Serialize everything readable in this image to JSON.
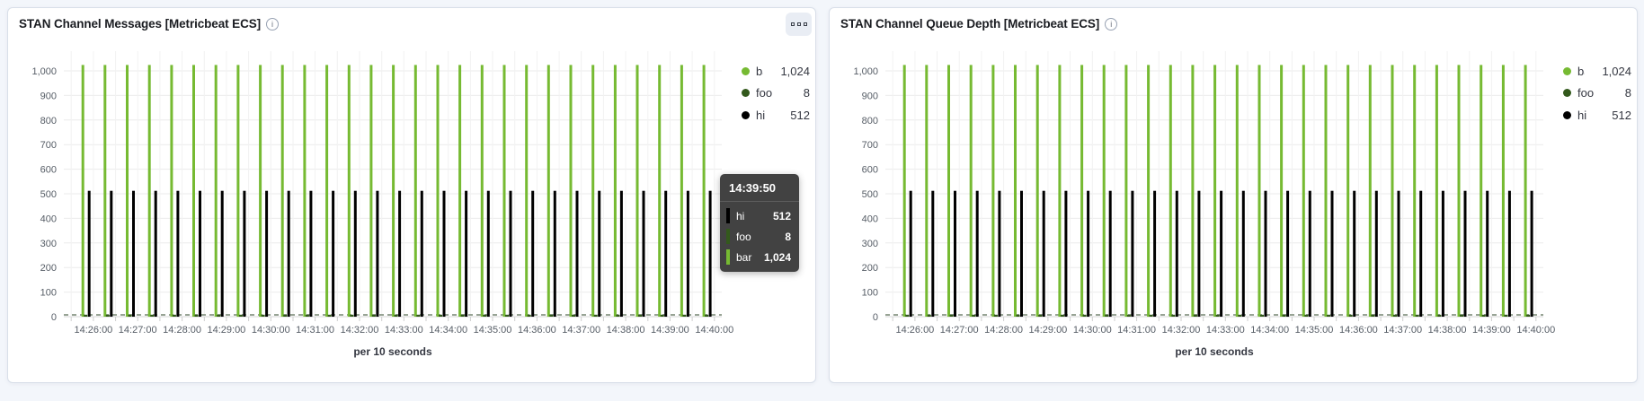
{
  "page": {
    "background": "#F3F6FB"
  },
  "icons": {
    "info_glyph": "i"
  },
  "colors": {
    "bar_green": "#76BA32",
    "foo_dark_green": "#33591C",
    "hi_black": "#000000",
    "panel_background": "#FFFFFF",
    "tooltip_background": "#424242"
  },
  "panels": [
    {
      "title": "STAN Channel Messages [Metricbeat ECS]"
    },
    {
      "title": "STAN Channel Queue Depth [Metricbeat ECS]"
    }
  ],
  "legend": {
    "items": [
      {
        "label": "bar",
        "value": "1,024",
        "color": "#76BA32",
        "truncated": true
      },
      {
        "label": "foo",
        "value": "8",
        "color": "#33591C",
        "truncated": false
      },
      {
        "label": "hi",
        "value": "512",
        "color": "#000000",
        "truncated": false
      }
    ]
  },
  "tooltip": {
    "time": "14:39:50",
    "rows": [
      {
        "label": "hi",
        "value": "512",
        "color": "#000000"
      },
      {
        "label": "foo",
        "value": "8",
        "color": "#33591C"
      },
      {
        "label": "bar",
        "value": "1,024",
        "color": "#76BA32"
      }
    ]
  },
  "axis_title": "per 10 seconds",
  "chart_data": [
    {
      "type": "bar",
      "title": "STAN Channel Messages [Metricbeat ECS]",
      "xlabel": "per 10 seconds",
      "ylabel": "",
      "ylim": [
        0,
        1000
      ],
      "y_ticks": [
        0,
        100,
        200,
        300,
        400,
        500,
        600,
        700,
        800,
        900,
        1000
      ],
      "x_tick_labels": [
        "14:26:00",
        "14:27:00",
        "14:28:00",
        "14:29:00",
        "14:30:00",
        "14:31:00",
        "14:32:00",
        "14:33:00",
        "14:34:00",
        "14:35:00",
        "14:36:00",
        "14:37:00",
        "14:38:00",
        "14:39:00",
        "14:40:00"
      ],
      "x_domain": [
        "14:25:20",
        "14:40:10"
      ],
      "grid": true,
      "legend_position": "right",
      "x": [
        "14:25:50",
        "14:26:20",
        "14:26:50",
        "14:27:20",
        "14:27:50",
        "14:28:20",
        "14:28:50",
        "14:29:20",
        "14:29:50",
        "14:30:20",
        "14:30:50",
        "14:31:20",
        "14:31:50",
        "14:32:20",
        "14:32:50",
        "14:33:20",
        "14:33:50",
        "14:34:20",
        "14:34:50",
        "14:35:20",
        "14:35:50",
        "14:36:20",
        "14:36:50",
        "14:37:20",
        "14:37:50",
        "14:38:20",
        "14:38:50",
        "14:39:20",
        "14:39:50"
      ],
      "series": [
        {
          "name": "bar",
          "style": "bar",
          "color": "#76BA32",
          "values": [
            1024,
            1024,
            1024,
            1024,
            1024,
            1024,
            1024,
            1024,
            1024,
            1024,
            1024,
            1024,
            1024,
            1024,
            1024,
            1024,
            1024,
            1024,
            1024,
            1024,
            1024,
            1024,
            1024,
            1024,
            1024,
            1024,
            1024,
            1024,
            1024
          ]
        },
        {
          "name": "hi",
          "style": "bar",
          "color": "#000000",
          "values": [
            512,
            512,
            512,
            512,
            512,
            512,
            512,
            512,
            512,
            512,
            512,
            512,
            512,
            512,
            512,
            512,
            512,
            512,
            512,
            512,
            512,
            512,
            512,
            512,
            512,
            512,
            512,
            512,
            512
          ]
        },
        {
          "name": "foo",
          "style": "dashed-baseline",
          "color": "#33591C",
          "values": [
            8,
            8,
            8,
            8,
            8,
            8,
            8,
            8,
            8,
            8,
            8,
            8,
            8,
            8,
            8,
            8,
            8,
            8,
            8,
            8,
            8,
            8,
            8,
            8,
            8,
            8,
            8,
            8,
            8
          ]
        }
      ]
    },
    {
      "type": "bar",
      "title": "STAN Channel Queue Depth [Metricbeat ECS]",
      "xlabel": "per 10 seconds",
      "ylabel": "",
      "ylim": [
        0,
        1000
      ],
      "y_ticks": [
        0,
        100,
        200,
        300,
        400,
        500,
        600,
        700,
        800,
        900,
        1000
      ],
      "x_tick_labels": [
        "14:26:00",
        "14:27:00",
        "14:28:00",
        "14:29:00",
        "14:30:00",
        "14:31:00",
        "14:32:00",
        "14:33:00",
        "14:34:00",
        "14:35:00",
        "14:36:00",
        "14:37:00",
        "14:38:00",
        "14:39:00",
        "14:40:00"
      ],
      "x_domain": [
        "14:25:20",
        "14:40:10"
      ],
      "grid": true,
      "legend_position": "right",
      "x": [
        "14:25:50",
        "14:26:20",
        "14:26:50",
        "14:27:20",
        "14:27:50",
        "14:28:20",
        "14:28:50",
        "14:29:20",
        "14:29:50",
        "14:30:20",
        "14:30:50",
        "14:31:20",
        "14:31:50",
        "14:32:20",
        "14:32:50",
        "14:33:20",
        "14:33:50",
        "14:34:20",
        "14:34:50",
        "14:35:20",
        "14:35:50",
        "14:36:20",
        "14:36:50",
        "14:37:20",
        "14:37:50",
        "14:38:20",
        "14:38:50",
        "14:39:20",
        "14:39:50"
      ],
      "series": [
        {
          "name": "bar",
          "style": "bar",
          "color": "#76BA32",
          "values": [
            1024,
            1024,
            1024,
            1024,
            1024,
            1024,
            1024,
            1024,
            1024,
            1024,
            1024,
            1024,
            1024,
            1024,
            1024,
            1024,
            1024,
            1024,
            1024,
            1024,
            1024,
            1024,
            1024,
            1024,
            1024,
            1024,
            1024,
            1024,
            1024
          ]
        },
        {
          "name": "hi",
          "style": "bar",
          "color": "#000000",
          "values": [
            512,
            512,
            512,
            512,
            512,
            512,
            512,
            512,
            512,
            512,
            512,
            512,
            512,
            512,
            512,
            512,
            512,
            512,
            512,
            512,
            512,
            512,
            512,
            512,
            512,
            512,
            512,
            512,
            512
          ]
        },
        {
          "name": "foo",
          "style": "dashed-baseline",
          "color": "#33591C",
          "values": [
            8,
            8,
            8,
            8,
            8,
            8,
            8,
            8,
            8,
            8,
            8,
            8,
            8,
            8,
            8,
            8,
            8,
            8,
            8,
            8,
            8,
            8,
            8,
            8,
            8,
            8,
            8,
            8,
            8
          ]
        }
      ]
    }
  ]
}
